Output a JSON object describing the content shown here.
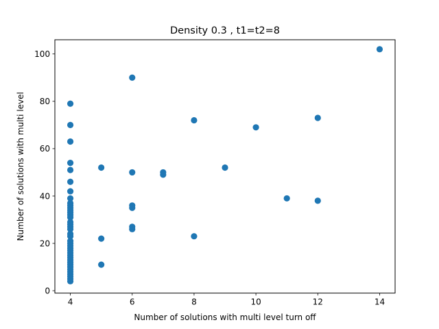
{
  "chart_data": {
    "type": "scatter",
    "title": "Density 0.3 , t1=t2=8",
    "xlabel": "Number of solutions with multi level turn off",
    "ylabel": "Number of solutions with multi level",
    "xlim": [
      3.5,
      14.5
    ],
    "ylim": [
      -1,
      106
    ],
    "xticks": [
      4,
      6,
      8,
      10,
      12,
      14
    ],
    "yticks": [
      0,
      20,
      40,
      60,
      80,
      100
    ],
    "grid": false,
    "legend": "none",
    "marker_color": "#1f77b4",
    "series": [
      {
        "points": [
          [
            4,
            79
          ],
          [
            4,
            70
          ],
          [
            4,
            63
          ],
          [
            4,
            54
          ],
          [
            4,
            51
          ],
          [
            4,
            46
          ],
          [
            4,
            42
          ],
          [
            4,
            39
          ],
          [
            4,
            37
          ],
          [
            4,
            36
          ],
          [
            4,
            35
          ],
          [
            4,
            34
          ],
          [
            4,
            33
          ],
          [
            4,
            32
          ],
          [
            4,
            31
          ],
          [
            4,
            29
          ],
          [
            4,
            28
          ],
          [
            4,
            27
          ],
          [
            4,
            26
          ],
          [
            4,
            24
          ],
          [
            4,
            23
          ],
          [
            4,
            21
          ],
          [
            4,
            20
          ],
          [
            4,
            19
          ],
          [
            4,
            18
          ],
          [
            4,
            17
          ],
          [
            4,
            16
          ],
          [
            4,
            15
          ],
          [
            4,
            14
          ],
          [
            4,
            13
          ],
          [
            4,
            12
          ],
          [
            4,
            11
          ],
          [
            4,
            10
          ],
          [
            4,
            9
          ],
          [
            4,
            8
          ],
          [
            4,
            7
          ],
          [
            4,
            6
          ],
          [
            4,
            5
          ],
          [
            4,
            4
          ],
          [
            5,
            52
          ],
          [
            5,
            22
          ],
          [
            5,
            11
          ],
          [
            6,
            90
          ],
          [
            6,
            50
          ],
          [
            6,
            36
          ],
          [
            6,
            35
          ],
          [
            6,
            27
          ],
          [
            6,
            26
          ],
          [
            7,
            50
          ],
          [
            7,
            49
          ],
          [
            8,
            72
          ],
          [
            8,
            23
          ],
          [
            9,
            52
          ],
          [
            10,
            69
          ],
          [
            11,
            39
          ],
          [
            12,
            73
          ],
          [
            12,
            38
          ],
          [
            14,
            102
          ]
        ]
      }
    ]
  }
}
